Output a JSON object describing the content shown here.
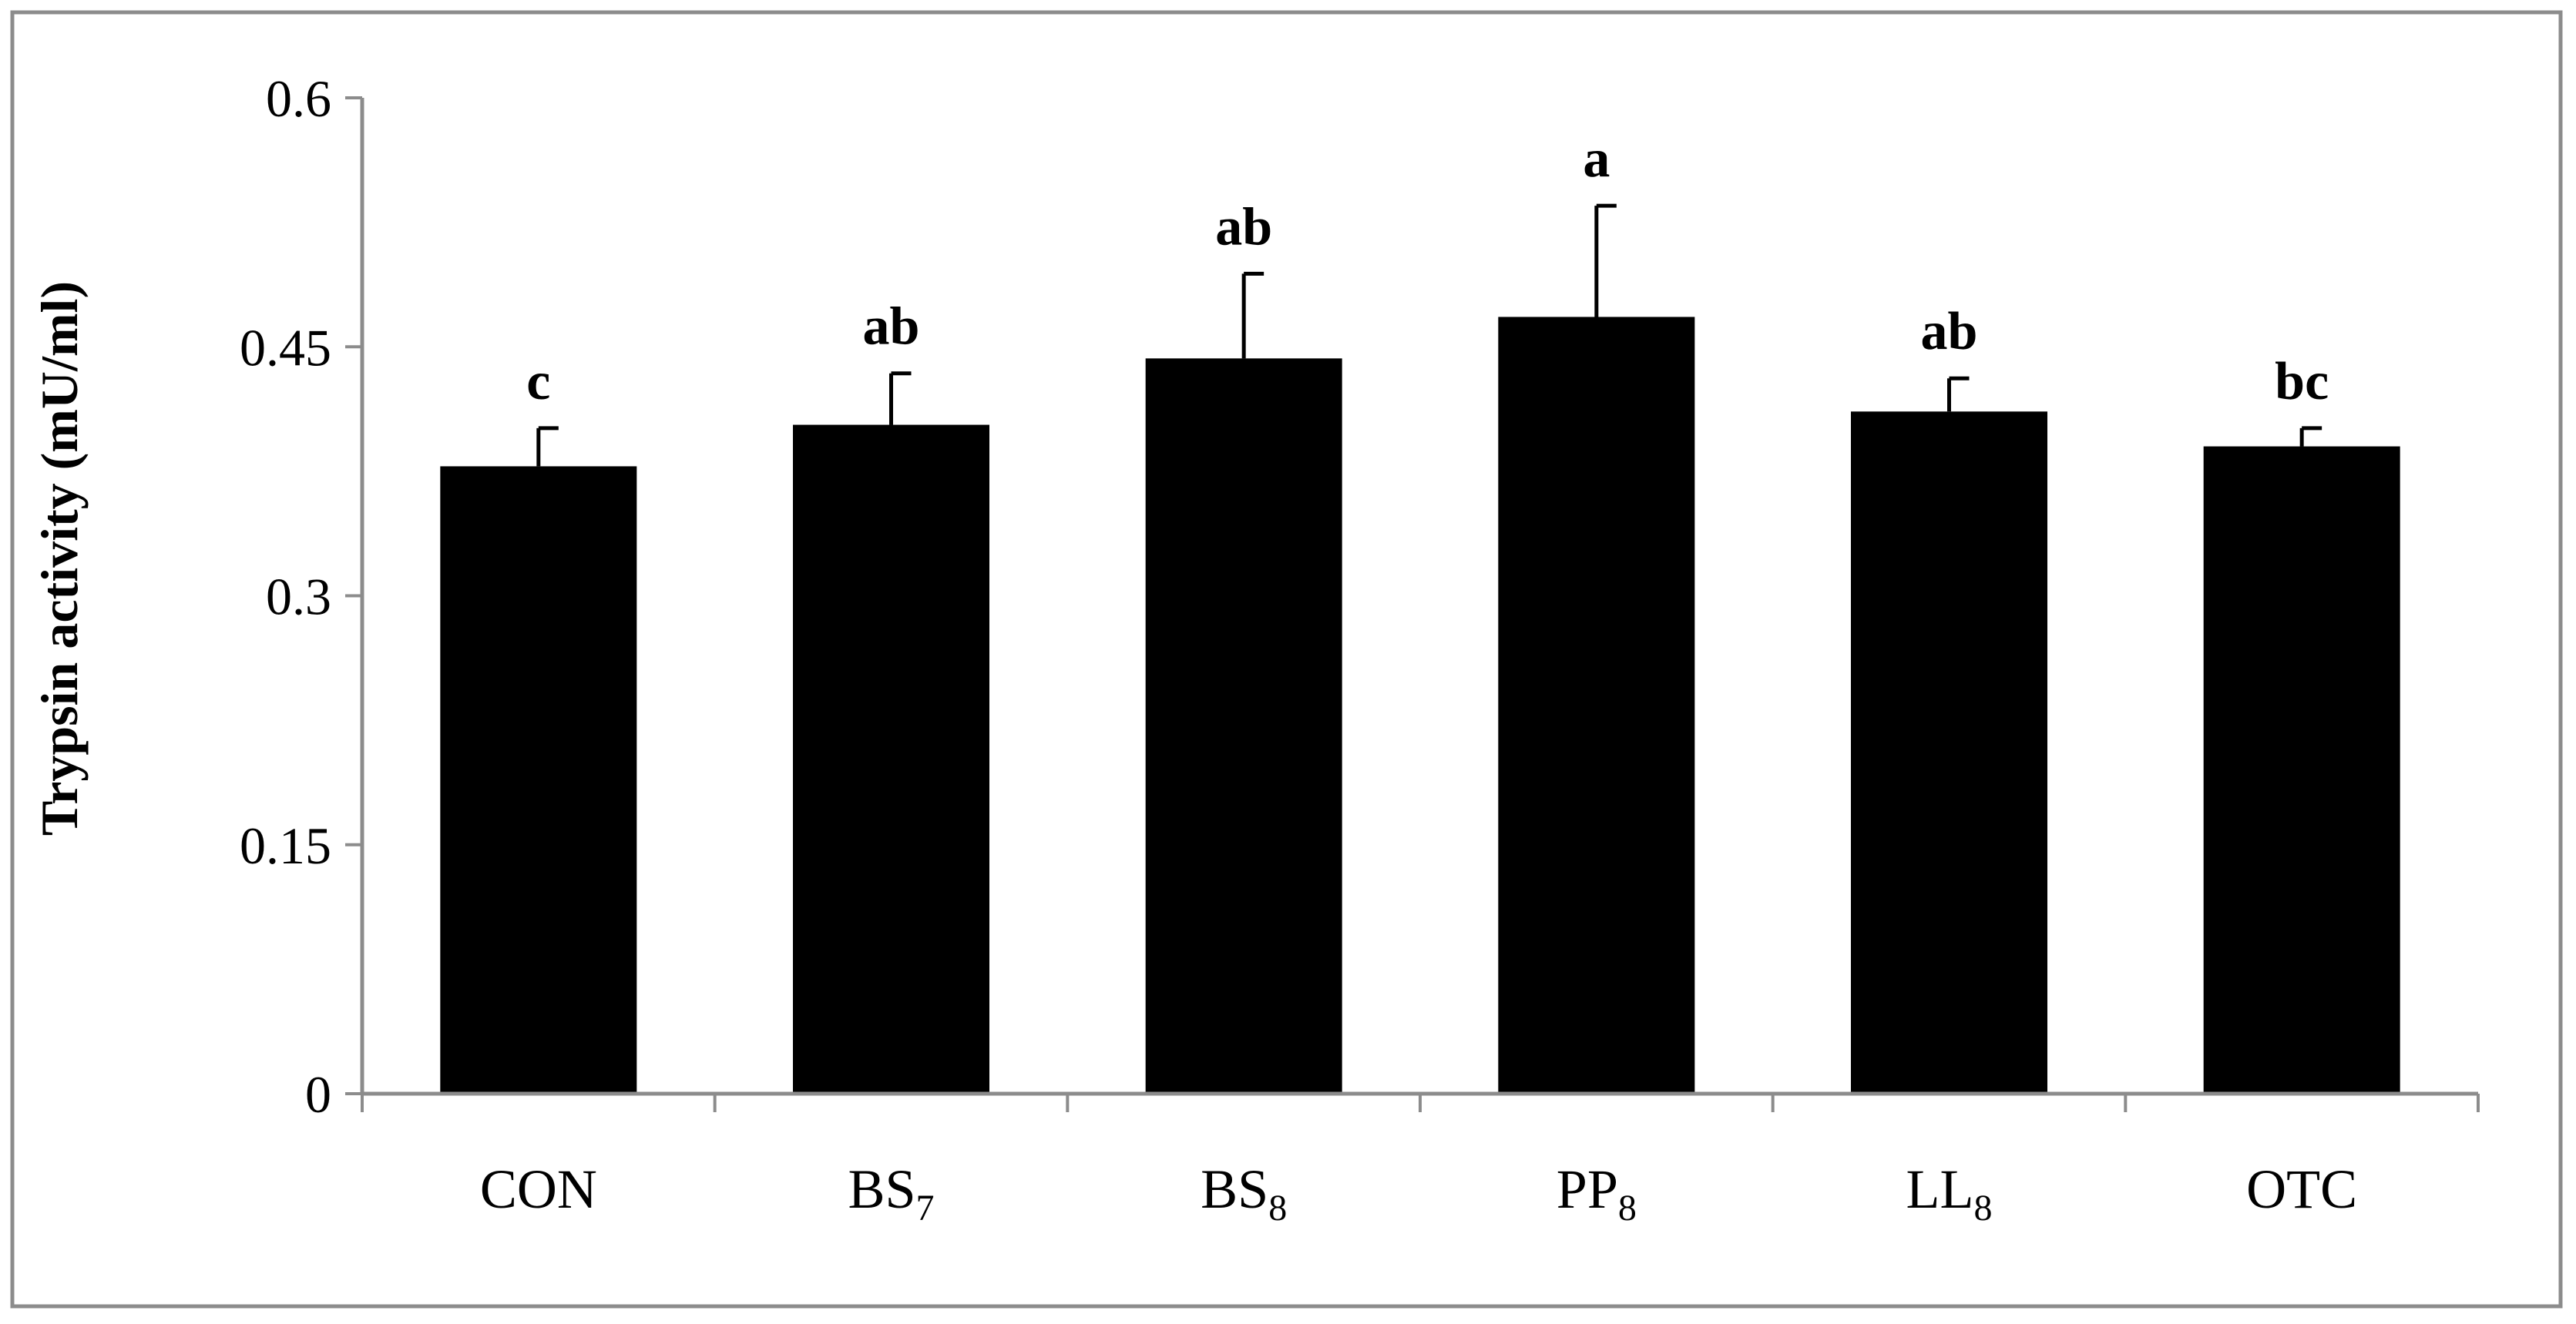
{
  "chart_data": {
    "type": "bar",
    "ylabel": "Trypsin activity (mU/ml)",
    "xlabel": "",
    "title": "",
    "ylim": [
      0,
      0.6
    ],
    "yticks": [
      "0",
      "0.15",
      "0.3",
      "0.45",
      "0.6"
    ],
    "ytick_values": [
      0,
      0.15,
      0.3,
      0.45,
      0.6
    ],
    "grid": false,
    "legend": "none",
    "categories": [
      {
        "base": "CON",
        "sub": ""
      },
      {
        "base": "BS",
        "sub": "7"
      },
      {
        "base": "BS",
        "sub": "8"
      },
      {
        "base": "PP",
        "sub": "8"
      },
      {
        "base": "LL",
        "sub": "8"
      },
      {
        "base": "OTC",
        "sub": ""
      }
    ],
    "values": [
      0.378,
      0.403,
      0.443,
      0.468,
      0.411,
      0.39
    ],
    "errors": [
      0.023,
      0.031,
      0.051,
      0.067,
      0.02,
      0.011
    ],
    "significance_letters": [
      "c",
      "ab",
      "ab",
      "a",
      "ab",
      "bc"
    ],
    "bar_color": "#000000",
    "axis_color": "#8c8c8c",
    "frame_color": "#8c8c8c"
  }
}
